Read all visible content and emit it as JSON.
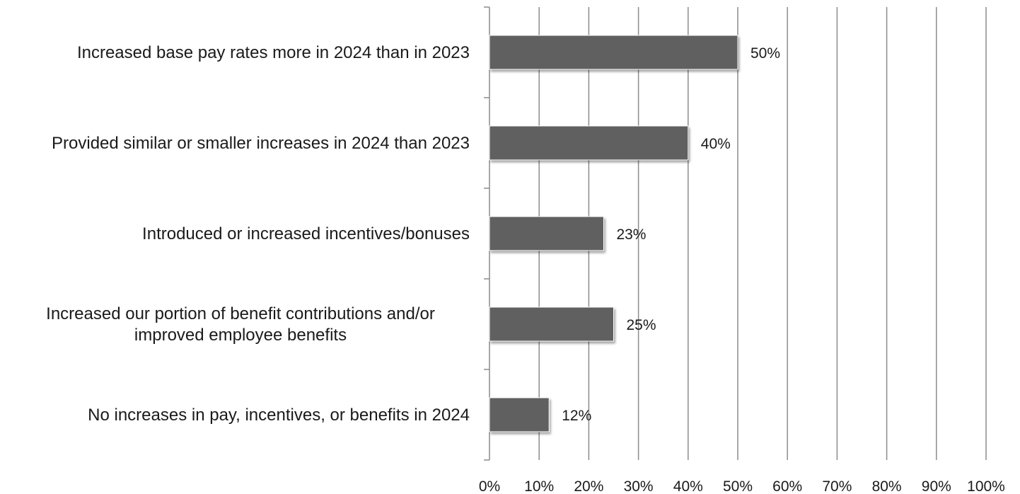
{
  "chart_data": {
    "type": "bar",
    "orientation": "horizontal",
    "categories": [
      [
        "Increased base pay rates more in 2024 than in 2023"
      ],
      [
        "Provided similar or smaller increases in 2024 than 2023"
      ],
      [
        "Introduced or increased incentives/bonuses"
      ],
      [
        "Increased our portion of benefit contributions and/or",
        "improved employee benefits"
      ],
      [
        "No increases in pay, incentives, or benefits in 2024"
      ]
    ],
    "values": [
      50,
      40,
      23,
      25,
      12
    ],
    "data_labels": [
      "50%",
      "40%",
      "23%",
      "25%",
      "12%"
    ],
    "xlim": [
      0,
      100
    ],
    "xticks": [
      0,
      10,
      20,
      30,
      40,
      50,
      60,
      70,
      80,
      90,
      100
    ],
    "xtick_labels": [
      "0%",
      "10%",
      "20%",
      "30%",
      "40%",
      "50%",
      "60%",
      "70%",
      "80%",
      "90%",
      "100%"
    ],
    "grid": "vertical",
    "legend": "none",
    "title": "",
    "xlabel": "",
    "ylabel": "",
    "colors": {
      "bar": "#606060",
      "grid": "#8c8c8c",
      "axis": "#8c8c8c"
    }
  }
}
